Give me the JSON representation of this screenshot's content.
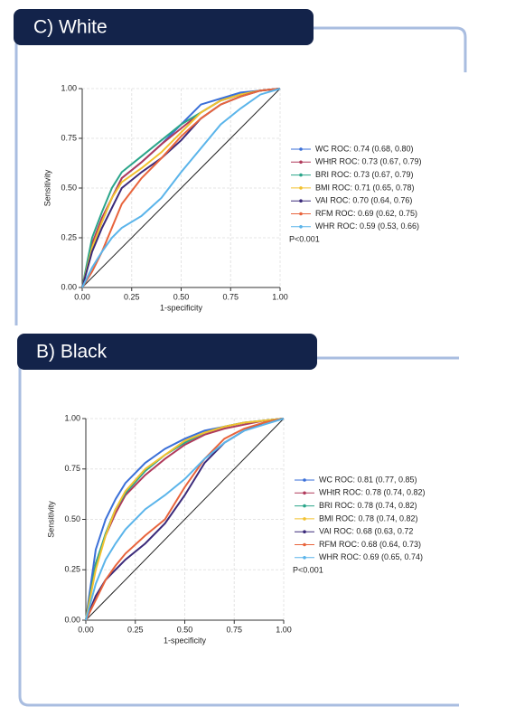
{
  "chart_data": [
    {
      "type": "line",
      "title": "C) White",
      "xlabel": "1-specificity",
      "ylabel": "Sensitivity",
      "xlim": [
        0,
        1
      ],
      "ylim": [
        0,
        1
      ],
      "xticks": [
        {
          "value": 0,
          "label": "0.00"
        },
        {
          "value": 0.25,
          "label": "0.25"
        },
        {
          "value": 0.5,
          "label": "0.50"
        },
        {
          "value": 0.75,
          "label": "0.75"
        },
        {
          "value": 1,
          "label": "1.00"
        }
      ],
      "yticks": [
        {
          "value": 0,
          "label": "0.00"
        },
        {
          "value": 0.25,
          "label": "0.25"
        },
        {
          "value": 0.5,
          "label": "0.50"
        },
        {
          "value": 0.75,
          "label": "0.75"
        },
        {
          "value": 1,
          "label": "1.00"
        }
      ],
      "grid": true,
      "legend": "right",
      "annotation": "P<0.001",
      "x": [
        0,
        0.05,
        0.1,
        0.15,
        0.2,
        0.3,
        0.4,
        0.5,
        0.6,
        0.7,
        0.8,
        0.9,
        1
      ],
      "series": [
        {
          "name": "WC ROC: 0.74 (0.68, 0.80)",
          "color": "#3a6fd8",
          "values": [
            0,
            0.2,
            0.33,
            0.45,
            0.55,
            0.63,
            0.72,
            0.82,
            0.92,
            0.95,
            0.98,
            0.99,
            1
          ]
        },
        {
          "name": "WHtR ROC: 0.73 (0.67, 0.79)",
          "color": "#b03a5b",
          "values": [
            0,
            0.22,
            0.35,
            0.45,
            0.55,
            0.63,
            0.72,
            0.8,
            0.88,
            0.94,
            0.97,
            0.99,
            1
          ]
        },
        {
          "name": "BRI ROC: 0.73 (0.67, 0.79)",
          "color": "#2aa58a",
          "values": [
            0,
            0.25,
            0.38,
            0.5,
            0.58,
            0.66,
            0.74,
            0.82,
            0.88,
            0.94,
            0.97,
            0.99,
            1
          ]
        },
        {
          "name": "BMI ROC: 0.71 (0.65, 0.78)",
          "color": "#f2c12e",
          "values": [
            0,
            0.2,
            0.33,
            0.45,
            0.53,
            0.6,
            0.68,
            0.78,
            0.88,
            0.94,
            0.97,
            0.99,
            1
          ]
        },
        {
          "name": "VAI ROC: 0.70 (0.64, 0.76)",
          "color": "#3b2a7a",
          "values": [
            0,
            0.18,
            0.3,
            0.4,
            0.5,
            0.58,
            0.65,
            0.74,
            0.85,
            0.92,
            0.96,
            0.99,
            1
          ]
        },
        {
          "name": "RFM ROC: 0.69 (0.62, 0.75)",
          "color": "#e8643c",
          "values": [
            0,
            0.08,
            0.18,
            0.3,
            0.42,
            0.55,
            0.65,
            0.76,
            0.85,
            0.92,
            0.96,
            0.99,
            1
          ]
        },
        {
          "name": "WHR ROC: 0.59 (0.53, 0.66)",
          "color": "#5ab4ea",
          "values": [
            0,
            0.1,
            0.18,
            0.25,
            0.3,
            0.36,
            0.45,
            0.58,
            0.7,
            0.82,
            0.9,
            0.97,
            1
          ]
        }
      ]
    },
    {
      "type": "line",
      "title": "B) Black",
      "xlabel": "1-specificity",
      "ylabel": "Sensitivity",
      "xlim": [
        0,
        1
      ],
      "ylim": [
        0,
        1
      ],
      "xticks": [
        {
          "value": 0,
          "label": "0.00"
        },
        {
          "value": 0.25,
          "label": "0.25"
        },
        {
          "value": 0.5,
          "label": "0.50"
        },
        {
          "value": 0.75,
          "label": "0.75"
        },
        {
          "value": 1,
          "label": "1.00"
        }
      ],
      "yticks": [
        {
          "value": 0,
          "label": "0.00"
        },
        {
          "value": 0.25,
          "label": "0.25"
        },
        {
          "value": 0.5,
          "label": "0.50"
        },
        {
          "value": 0.75,
          "label": "0.75"
        },
        {
          "value": 1,
          "label": "1.00"
        }
      ],
      "grid": true,
      "legend": "right",
      "annotation": "P<0.001",
      "x": [
        0,
        0.05,
        0.1,
        0.15,
        0.2,
        0.3,
        0.4,
        0.5,
        0.6,
        0.7,
        0.8,
        0.9,
        1
      ],
      "series": [
        {
          "name": "WC ROC: 0.81 (0.77, 0.85)",
          "color": "#3a6fd8",
          "values": [
            0,
            0.35,
            0.5,
            0.6,
            0.68,
            0.78,
            0.85,
            0.9,
            0.94,
            0.96,
            0.98,
            0.99,
            1
          ]
        },
        {
          "name": "WHtR ROC: 0.78 (0.74, 0.82)",
          "color": "#b03a5b",
          "values": [
            0,
            0.28,
            0.42,
            0.53,
            0.62,
            0.72,
            0.8,
            0.87,
            0.92,
            0.95,
            0.97,
            0.99,
            1
          ]
        },
        {
          "name": "BRI ROC: 0.78 (0.74, 0.82)",
          "color": "#2aa58a",
          "values": [
            0,
            0.28,
            0.43,
            0.55,
            0.63,
            0.74,
            0.82,
            0.88,
            0.93,
            0.96,
            0.98,
            0.99,
            1
          ]
        },
        {
          "name": "BMI ROC: 0.78 (0.74, 0.82)",
          "color": "#f2c12e",
          "values": [
            0,
            0.25,
            0.42,
            0.55,
            0.64,
            0.75,
            0.82,
            0.89,
            0.93,
            0.96,
            0.98,
            0.99,
            1
          ]
        },
        {
          "name": "VAI ROC: 0.68 (0.63, 0.72",
          "color": "#3b2a7a",
          "values": [
            0,
            0.12,
            0.2,
            0.25,
            0.3,
            0.38,
            0.48,
            0.62,
            0.78,
            0.88,
            0.94,
            0.98,
            1
          ]
        },
        {
          "name": "RFM ROC: 0.68 (0.64, 0.73)",
          "color": "#e8643c",
          "values": [
            0,
            0.1,
            0.2,
            0.27,
            0.33,
            0.42,
            0.5,
            0.66,
            0.8,
            0.9,
            0.95,
            0.98,
            1
          ]
        },
        {
          "name": "WHR ROC: 0.69 (0.65, 0.74)",
          "color": "#5ab4ea",
          "values": [
            0,
            0.18,
            0.3,
            0.38,
            0.45,
            0.55,
            0.62,
            0.7,
            0.8,
            0.88,
            0.94,
            0.97,
            1
          ]
        }
      ]
    }
  ]
}
